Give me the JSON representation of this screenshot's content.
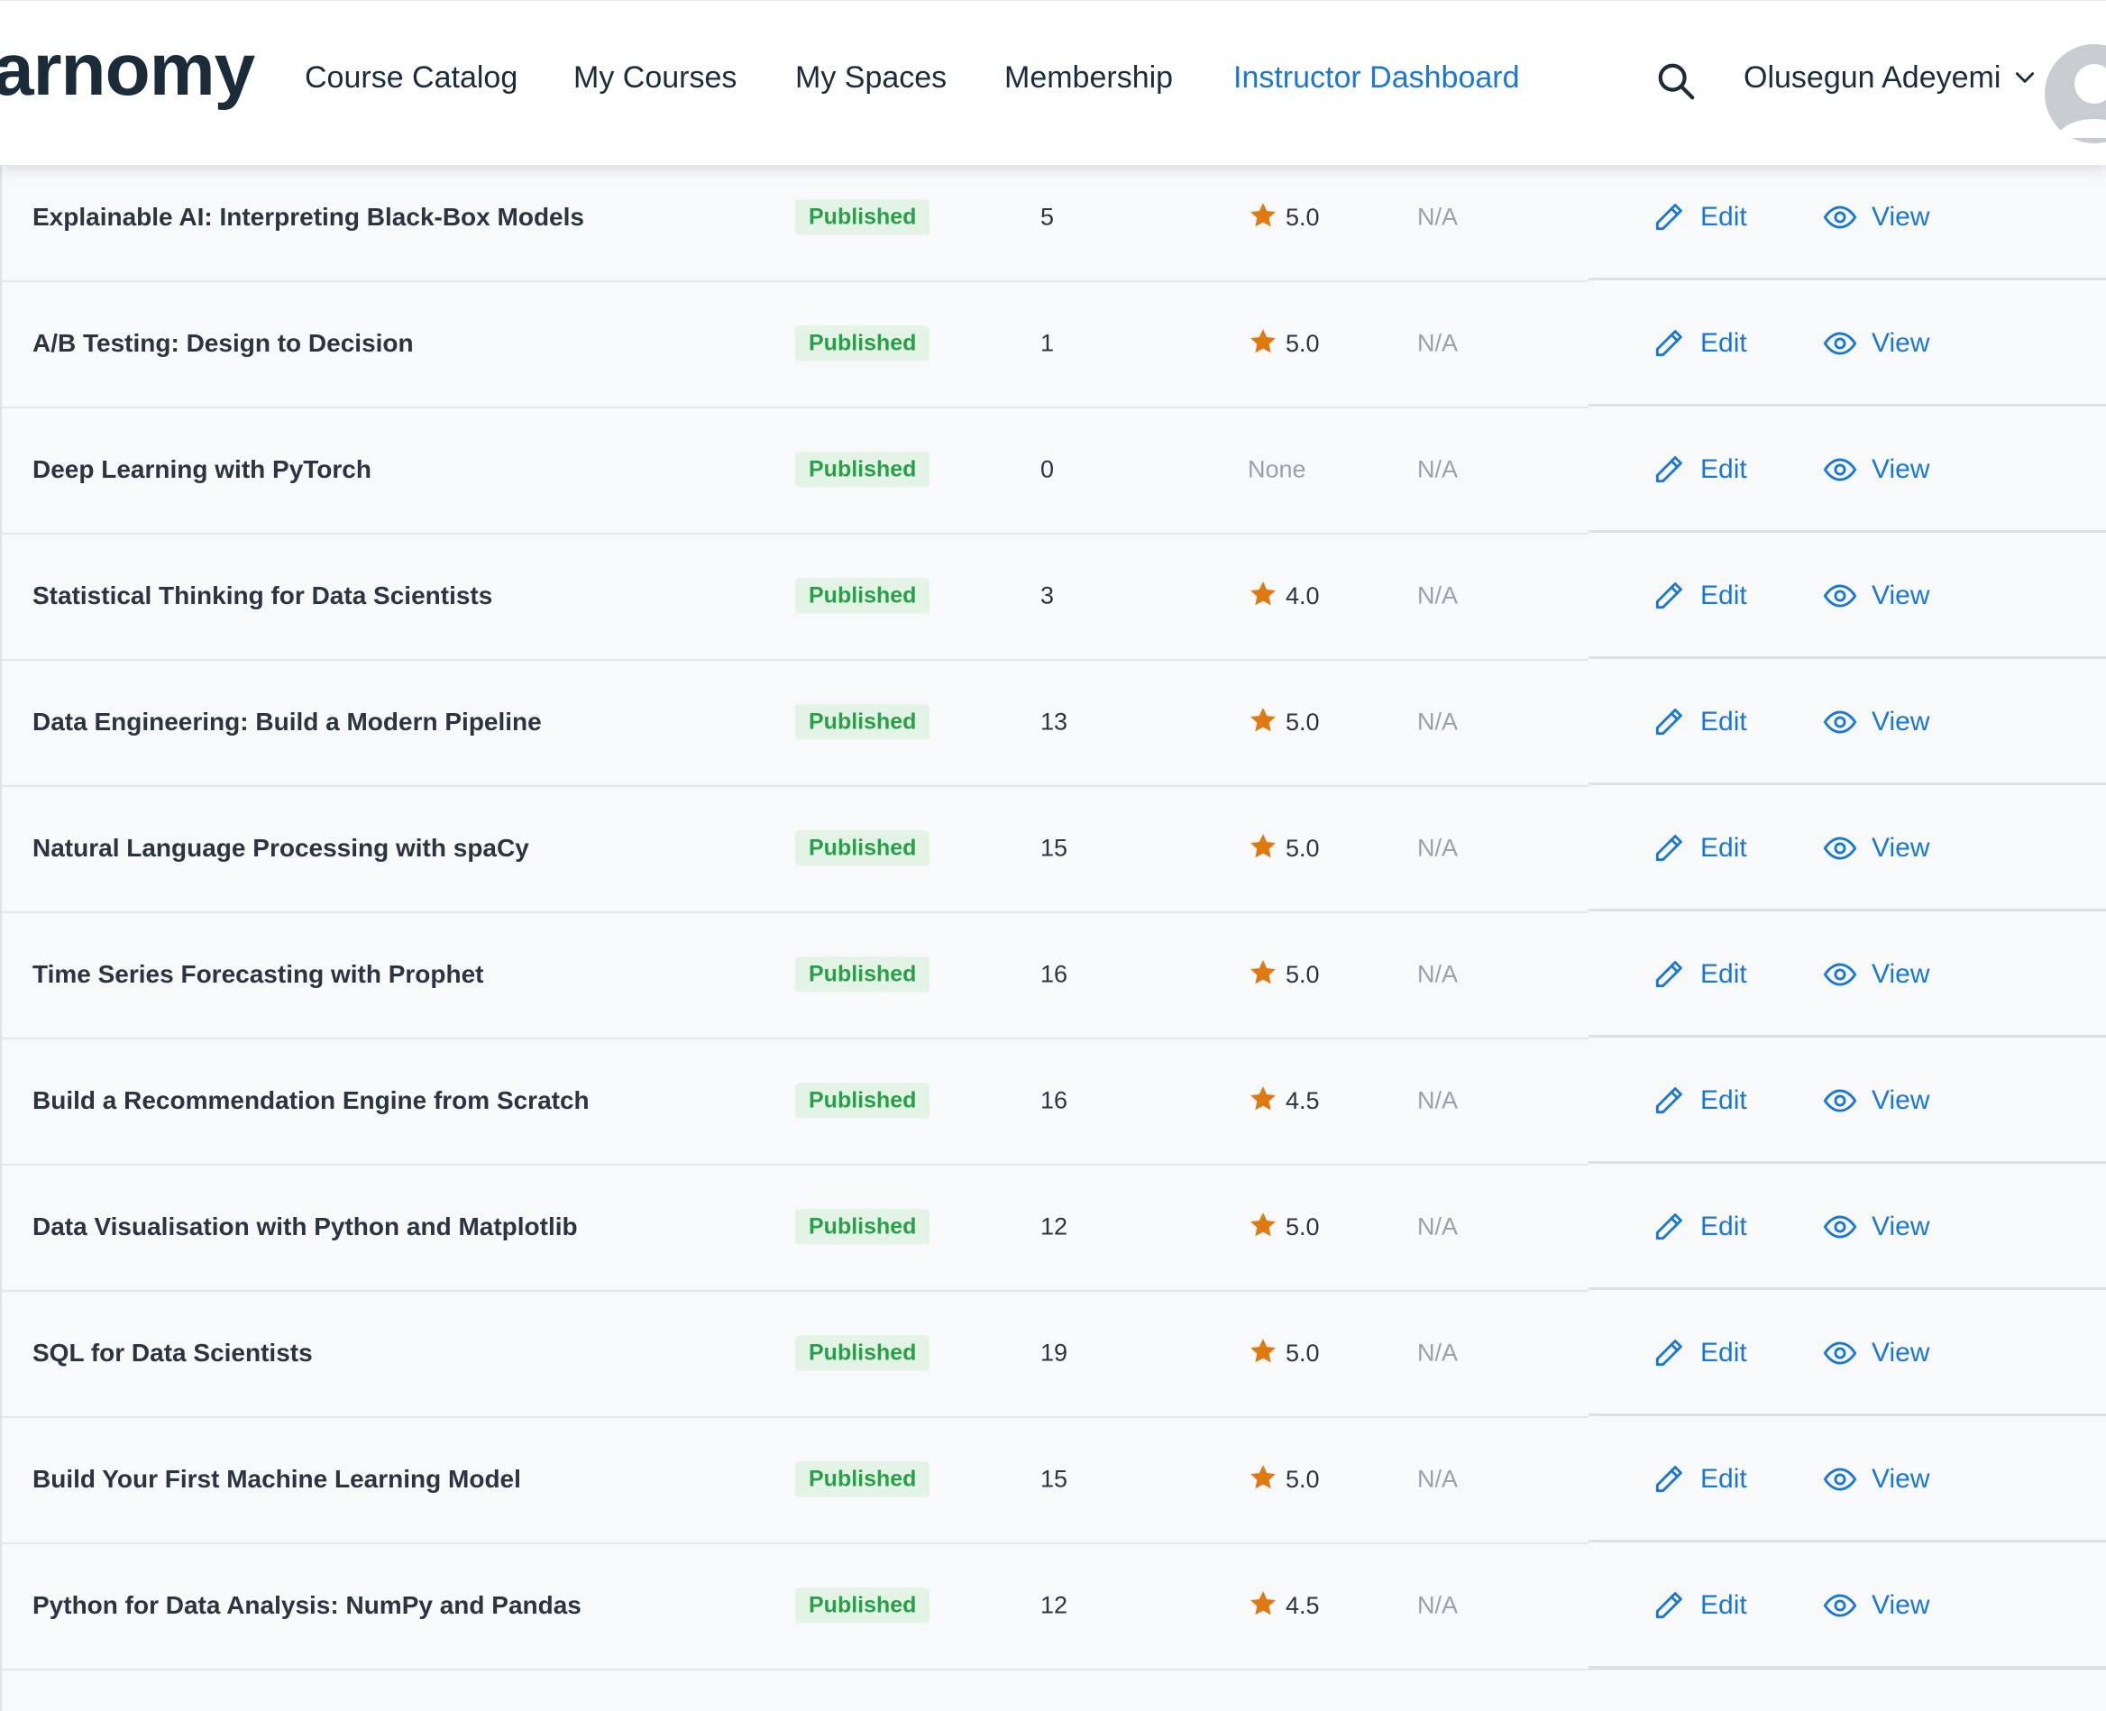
{
  "header": {
    "brand": "arnomy",
    "nav": [
      {
        "label": "Course Catalog",
        "active": false
      },
      {
        "label": "My Courses",
        "active": false
      },
      {
        "label": "My Spaces",
        "active": false
      },
      {
        "label": "Membership",
        "active": false
      },
      {
        "label": "Instructor Dashboard",
        "active": true
      }
    ],
    "search_icon": "search-icon",
    "user": {
      "name": "Olusegun Adeyemi",
      "menu_icon": "chevron-down-icon",
      "avatar_icon": "user-avatar-icon"
    }
  },
  "colors": {
    "accent": "#1a77d2",
    "status_green": "#27a047",
    "status_bg": "#e3f3e6",
    "star": "#e07a10",
    "text": "#2b3440",
    "muted": "#9aa1aa"
  },
  "courses": [
    {
      "title": "Explainable AI: Interpreting Black-Box Models",
      "status": "Published",
      "count": "5",
      "rating": "5.0",
      "revenue": "N/A",
      "edit": "Edit",
      "view": "View"
    },
    {
      "title": "A/B Testing: Design to Decision",
      "status": "Published",
      "count": "1",
      "rating": "5.0",
      "revenue": "N/A",
      "edit": "Edit",
      "view": "View"
    },
    {
      "title": "Deep Learning with PyTorch",
      "status": "Published",
      "count": "0",
      "rating": "None",
      "revenue": "N/A",
      "edit": "Edit",
      "view": "View"
    },
    {
      "title": "Statistical Thinking for Data Scientists",
      "status": "Published",
      "count": "3",
      "rating": "4.0",
      "revenue": "N/A",
      "edit": "Edit",
      "view": "View"
    },
    {
      "title": "Data Engineering: Build a Modern Pipeline",
      "status": "Published",
      "count": "13",
      "rating": "5.0",
      "revenue": "N/A",
      "edit": "Edit",
      "view": "View"
    },
    {
      "title": "Natural Language Processing with spaCy",
      "status": "Published",
      "count": "15",
      "rating": "5.0",
      "revenue": "N/A",
      "edit": "Edit",
      "view": "View"
    },
    {
      "title": "Time Series Forecasting with Prophet",
      "status": "Published",
      "count": "16",
      "rating": "5.0",
      "revenue": "N/A",
      "edit": "Edit",
      "view": "View"
    },
    {
      "title": "Build a Recommendation Engine from Scratch",
      "status": "Published",
      "count": "16",
      "rating": "4.5",
      "revenue": "N/A",
      "edit": "Edit",
      "view": "View"
    },
    {
      "title": "Data Visualisation with Python and Matplotlib",
      "status": "Published",
      "count": "12",
      "rating": "5.0",
      "revenue": "N/A",
      "edit": "Edit",
      "view": "View"
    },
    {
      "title": "SQL for Data Scientists",
      "status": "Published",
      "count": "19",
      "rating": "5.0",
      "revenue": "N/A",
      "edit": "Edit",
      "view": "View"
    },
    {
      "title": "Build Your First Machine Learning Model",
      "status": "Published",
      "count": "15",
      "rating": "5.0",
      "revenue": "N/A",
      "edit": "Edit",
      "view": "View"
    },
    {
      "title": "Python for Data Analysis: NumPy and Pandas",
      "status": "Published",
      "count": "12",
      "rating": "4.5",
      "revenue": "N/A",
      "edit": "Edit",
      "view": "View"
    }
  ]
}
